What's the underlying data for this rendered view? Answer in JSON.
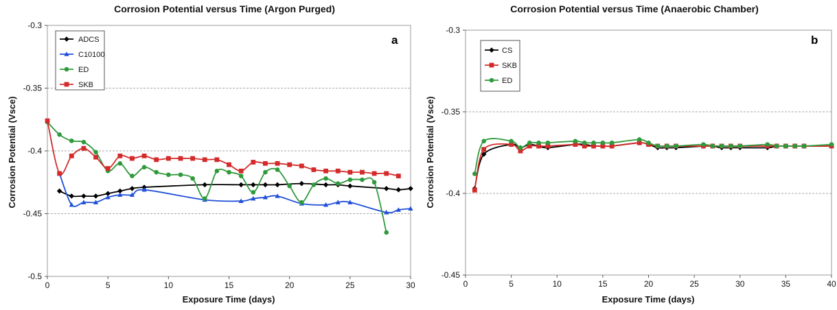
{
  "chart_data": [
    {
      "type": "line",
      "panel": "a",
      "title": "Corrosion Potential versus Time (Argon Purged)",
      "xlabel": "Exposure Time (days)",
      "ylabel": "Corrosion Potential (Vsce)",
      "xlim": [
        0,
        30
      ],
      "ylim": [
        -0.5,
        -0.3
      ],
      "xticks": [
        0,
        5,
        10,
        15,
        20,
        25,
        30
      ],
      "yticks": [
        -0.3,
        -0.35,
        -0.4,
        -0.45,
        -0.5
      ],
      "ytick_labels": [
        "-0.3",
        "-0.35",
        "-0.4",
        "-0.45",
        "-0.5"
      ],
      "grid": "horizontal dashed",
      "legend_position": "top-left",
      "series": [
        {
          "name": "ADCS",
          "color": "#000000",
          "marker": "diamond",
          "x": [
            1,
            2,
            3,
            4,
            5,
            6,
            7,
            8,
            13,
            16,
            17,
            18,
            19,
            21,
            23,
            24,
            25,
            28,
            29,
            30
          ],
          "y": [
            -0.432,
            -0.436,
            -0.436,
            -0.436,
            -0.434,
            -0.432,
            -0.43,
            -0.429,
            -0.427,
            -0.427,
            -0.427,
            -0.427,
            -0.427,
            -0.426,
            -0.427,
            -0.427,
            -0.428,
            -0.43,
            -0.431,
            -0.43
          ]
        },
        {
          "name": "C10100",
          "color": "#1f4fd8",
          "marker": "triangle",
          "x": [
            1,
            2,
            3,
            4,
            5,
            6,
            7,
            8,
            13,
            16,
            17,
            18,
            19,
            21,
            23,
            24,
            25,
            28,
            29,
            30
          ],
          "y": [
            -0.418,
            -0.443,
            -0.441,
            -0.441,
            -0.437,
            -0.435,
            -0.435,
            -0.431,
            -0.439,
            -0.44,
            -0.438,
            -0.437,
            -0.436,
            -0.442,
            -0.443,
            -0.441,
            -0.441,
            -0.449,
            -0.447,
            -0.446
          ]
        },
        {
          "name": "ED",
          "color": "#2f9a3c",
          "marker": "circle",
          "x": [
            0,
            1,
            2,
            3,
            4,
            5,
            6,
            7,
            8,
            9,
            10,
            11,
            12,
            13,
            14,
            15,
            16,
            17,
            18,
            19,
            20,
            21,
            22,
            23,
            24,
            25,
            26,
            27,
            28
          ],
          "y": [
            -0.377,
            -0.387,
            -0.392,
            -0.393,
            -0.401,
            -0.416,
            -0.41,
            -0.42,
            -0.413,
            -0.417,
            -0.419,
            -0.419,
            -0.422,
            -0.438,
            -0.416,
            -0.417,
            -0.42,
            -0.433,
            -0.417,
            -0.415,
            -0.428,
            -0.441,
            -0.427,
            -0.422,
            -0.426,
            -0.423,
            -0.423,
            -0.425,
            -0.465
          ]
        },
        {
          "name": "SKB",
          "color": "#d42a2a",
          "marker": "square",
          "x": [
            0,
            1,
            2,
            3,
            4,
            5,
            6,
            7,
            8,
            9,
            10,
            11,
            12,
            13,
            14,
            15,
            16,
            17,
            18,
            19,
            20,
            21,
            22,
            23,
            24,
            25,
            26,
            27,
            28,
            29
          ],
          "y": [
            -0.376,
            -0.418,
            -0.404,
            -0.398,
            -0.405,
            -0.414,
            -0.404,
            -0.406,
            -0.404,
            -0.407,
            -0.406,
            -0.406,
            -0.406,
            -0.407,
            -0.407,
            -0.411,
            -0.416,
            -0.409,
            -0.41,
            -0.41,
            -0.411,
            -0.412,
            -0.415,
            -0.416,
            -0.416,
            -0.417,
            -0.417,
            -0.418,
            -0.418,
            -0.42
          ]
        }
      ]
    },
    {
      "type": "line",
      "panel": "b",
      "title": "Corrosion Potential versus Time (Anaerobic Chamber)",
      "xlabel": "Exposure Time (days)",
      "ylabel": "Corrosion Potential (Vsce)",
      "xlim": [
        0,
        40
      ],
      "ylim": [
        -0.45,
        -0.3
      ],
      "xticks": [
        0,
        5,
        10,
        15,
        20,
        25,
        30,
        35,
        40
      ],
      "yticks": [
        -0.3,
        -0.35,
        -0.4,
        -0.45
      ],
      "ytick_labels": [
        "-0.3",
        "-0.35",
        "-0.4",
        "-0.45"
      ],
      "grid": "horizontal dashed",
      "legend_position": "top-left",
      "series": [
        {
          "name": "CS",
          "color": "#000000",
          "marker": "diamond",
          "x": [
            1,
            2,
            5,
            6,
            7,
            8,
            9,
            12,
            13,
            14,
            15,
            16,
            19,
            20,
            21,
            22,
            23,
            26,
            27,
            28,
            29,
            30,
            33,
            34,
            35,
            36,
            37,
            40
          ],
          "y": [
            -0.397,
            -0.376,
            -0.37,
            -0.372,
            -0.37,
            -0.371,
            -0.372,
            -0.37,
            -0.37,
            -0.371,
            -0.371,
            -0.371,
            -0.369,
            -0.37,
            -0.372,
            -0.372,
            -0.372,
            -0.371,
            -0.371,
            -0.372,
            -0.372,
            -0.372,
            -0.372,
            -0.371,
            -0.371,
            -0.371,
            -0.371,
            -0.371
          ]
        },
        {
          "name": "SKB",
          "color": "#d42a2a",
          "marker": "square",
          "x": [
            1,
            2,
            5,
            6,
            7,
            8,
            9,
            12,
            13,
            14,
            15,
            16,
            19,
            20,
            21,
            22,
            23,
            26,
            27,
            28,
            29,
            30,
            33,
            34,
            35,
            36,
            37,
            40
          ],
          "y": [
            -0.398,
            -0.373,
            -0.37,
            -0.374,
            -0.371,
            -0.371,
            -0.371,
            -0.37,
            -0.371,
            -0.371,
            -0.371,
            -0.371,
            -0.369,
            -0.37,
            -0.371,
            -0.371,
            -0.371,
            -0.371,
            -0.371,
            -0.371,
            -0.371,
            -0.371,
            -0.371,
            -0.371,
            -0.371,
            -0.371,
            -0.371,
            -0.371
          ]
        },
        {
          "name": "ED",
          "color": "#2f9a3c",
          "marker": "circle",
          "x": [
            1,
            2,
            5,
            6,
            7,
            8,
            9,
            12,
            13,
            14,
            15,
            16,
            19,
            20,
            21,
            22,
            23,
            26,
            27,
            28,
            29,
            30,
            33,
            34,
            35,
            36,
            37,
            40
          ],
          "y": [
            -0.388,
            -0.368,
            -0.368,
            -0.372,
            -0.369,
            -0.369,
            -0.369,
            -0.368,
            -0.369,
            -0.369,
            -0.369,
            -0.369,
            -0.367,
            -0.369,
            -0.371,
            -0.371,
            -0.371,
            -0.37,
            -0.371,
            -0.371,
            -0.371,
            -0.371,
            -0.37,
            -0.371,
            -0.371,
            -0.371,
            -0.371,
            -0.37
          ]
        }
      ]
    }
  ]
}
